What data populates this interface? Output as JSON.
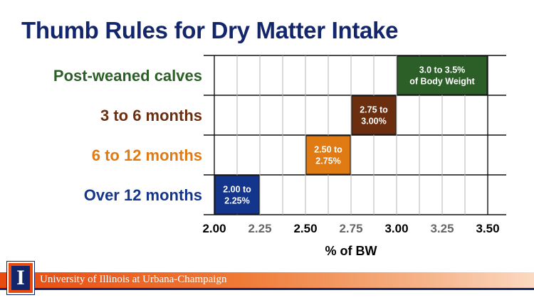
{
  "slide": {
    "title": "Thumb Rules for Dry Matter Intake",
    "footer_text": "University of Illinois at Urbana-Champaign",
    "logo_letter": "I"
  },
  "colors": {
    "title": "#13256b",
    "grid": "#b5b5b5",
    "grid_bold": "#111111",
    "series": [
      "#2c5e27",
      "#6b2e0e",
      "#e07a12",
      "#13368c"
    ]
  },
  "chart_data": {
    "type": "bar",
    "orientation": "horizontal-range",
    "title": "Thumb Rules for Dry Matter Intake",
    "xlabel": "% of BW",
    "xlim": [
      2.0,
      3.5
    ],
    "grid": true,
    "x_ticks": [
      "2.00",
      "2.25",
      "2.50",
      "2.75",
      "3.00",
      "3.25",
      "3.50"
    ],
    "x_tick_colors": [
      "#000000",
      "#666666",
      "#000000",
      "#666666",
      "#000000",
      "#666666",
      "#000000"
    ],
    "categories": [
      "Post-weaned calves",
      "3 to 6 months",
      "6 to 12 months",
      "Over 12 months"
    ],
    "ranges": [
      {
        "category": "Post-weaned calves",
        "start": 3.0,
        "end": 3.5,
        "label": [
          "3.0 to 3.5%",
          "of Body Weight"
        ],
        "color": "#2c5e27"
      },
      {
        "category": "3 to 6 months",
        "start": 2.75,
        "end": 3.0,
        "label": [
          "2.75 to",
          "3.00%"
        ],
        "color": "#6b2e0e"
      },
      {
        "category": "6 to 12 months",
        "start": 2.5,
        "end": 2.75,
        "label": [
          "2.50 to",
          "2.75%"
        ],
        "color": "#e07a12"
      },
      {
        "category": "Over 12 months",
        "start": 2.0,
        "end": 2.25,
        "label": [
          "2.00 to",
          "2.25%"
        ],
        "color": "#13368c"
      }
    ]
  }
}
